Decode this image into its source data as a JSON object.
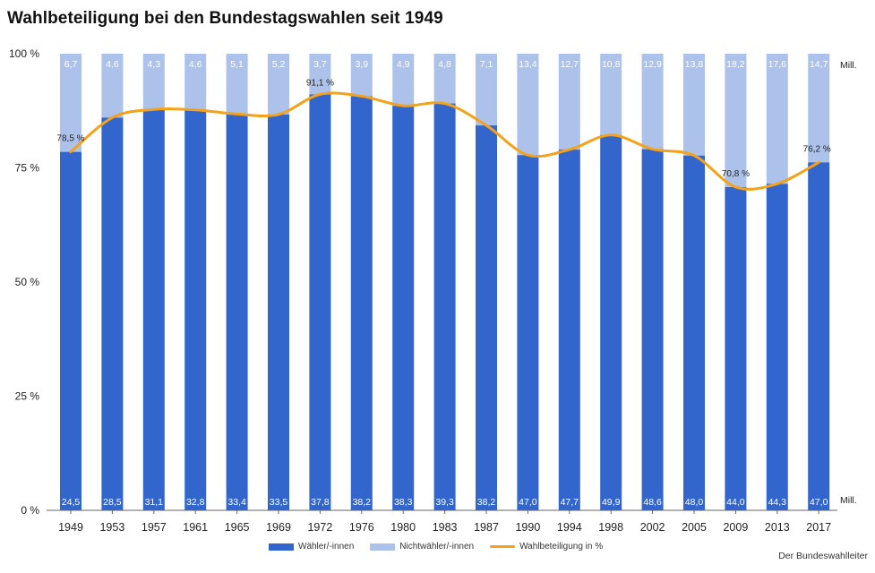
{
  "title": "Wahlbeteiligung bei den Bundestagswahlen seit 1949",
  "source": "Der Bundeswahlleiter",
  "colors": {
    "voters": "#3366cc",
    "nonvoters": "#adc2ea",
    "turnout": "#f3a21a",
    "axis": "#666666"
  },
  "chart_data": {
    "type": "bar",
    "stacked": true,
    "title": "Wahlbeteiligung bei den Bundestagswahlen seit 1949",
    "categories": [
      "1949",
      "1953",
      "1957",
      "1961",
      "1965",
      "1969",
      "1972",
      "1976",
      "1980",
      "1983",
      "1987",
      "1990",
      "1994",
      "1998",
      "2002",
      "2005",
      "2009",
      "2013",
      "2017"
    ],
    "y_ticks": [
      "0 %",
      "25 %",
      "50 %",
      "75 %",
      "100 %"
    ],
    "ylim": [
      0,
      100
    ],
    "unit_label": "Mill.",
    "series": [
      {
        "name": "Wähler/-innen",
        "millions": [
          "24,5",
          "28,5",
          "31,1",
          "32,8",
          "33,4",
          "33,5",
          "37,8",
          "38,2",
          "38,3",
          "39,3",
          "38,2",
          "47,0",
          "47,7",
          "49,9",
          "48,6",
          "48,0",
          "44,0",
          "44,3",
          "47,0"
        ]
      },
      {
        "name": "Nichtwähler/-innen",
        "millions": [
          "6,7",
          "4,6",
          "4,3",
          "4,6",
          "5,1",
          "5,2",
          "3,7",
          "3,9",
          "4,9",
          "4,8",
          "7,1",
          "13,4",
          "12,7",
          "10,8",
          "12,9",
          "13,8",
          "18,2",
          "17,6",
          "14,7"
        ]
      },
      {
        "name": "Wahlbeteiligung in %",
        "type": "line",
        "values": [
          78.5,
          86.0,
          87.8,
          87.7,
          86.8,
          86.7,
          91.1,
          90.7,
          88.6,
          89.1,
          84.3,
          77.8,
          79.0,
          82.2,
          79.1,
          77.7,
          70.8,
          71.5,
          76.2
        ],
        "point_labels": [
          {
            "index": 0,
            "text": "78,5 %"
          },
          {
            "index": 6,
            "text": "91,1 %"
          },
          {
            "index": 16,
            "text": "70,8 %"
          },
          {
            "index": 18,
            "text": "76,2 %"
          }
        ]
      }
    ],
    "legend_position": "bottom-center",
    "grid": false
  }
}
